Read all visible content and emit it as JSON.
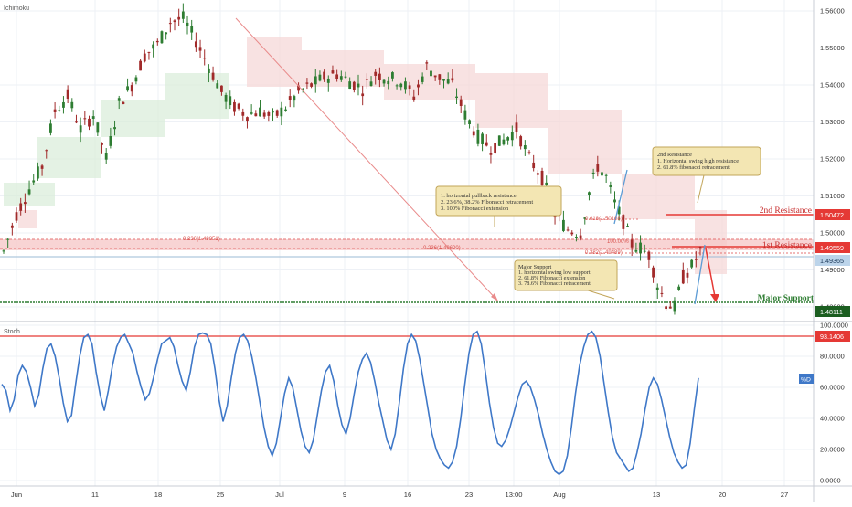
{
  "colors": {
    "background": "#ffffff",
    "grid": "#eef1f6",
    "candle_up": "#2e7d32",
    "candle_down": "#a12a2a",
    "cloud_bull": "#d8ecd8",
    "cloud_bear": "#f5d5d5",
    "resistance_zone": "#f6c6c6",
    "resistance_line": "#e53935",
    "support_line": "#2e7d32",
    "stoch_line": "#3f78c8",
    "stoch_level": "#e53935",
    "note_bg": "#f3e6b3",
    "note_border": "#c2a55a",
    "axis_text": "#333333",
    "fib_text": "#d9534f"
  },
  "labels": {
    "ichimoku": "Ichimoku",
    "stoch": "Stoch",
    "pct_d": "%D",
    "fib_left": "0.236(1.49851)",
    "fib_mid": "0.236(1.49600)",
    "fib_382": "0.382(1.49489)",
    "fib_618": "0.618(1.50108)",
    "fib_100": "100.00%"
  },
  "annotations": {
    "pullback": {
      "lines": [
        "1. horizontal pullback resistance",
        "2. 23.6%, 38.2% Fibonacci retracement",
        "3. 100% Fibonacci extension"
      ]
    },
    "major_support": {
      "lines": [
        "Major Support",
        "1. horizontal swing low support",
        "2. 61.8% Fibonacci extension",
        "3. 78.6% Fibonacci retracement"
      ]
    },
    "second_resistance": {
      "lines": [
        "2nd Resistance",
        "1. Horizontal swing high resistance",
        "2. 61.8% fibonacci retracement"
      ]
    }
  },
  "chart_data": [
    {
      "type": "candlestick",
      "title": "Ichimoku",
      "y_ticks": [
        "1.56000",
        "1.55000",
        "1.54000",
        "1.53000",
        "1.52000",
        "1.51000",
        "1.50000",
        "1.49000",
        "1.48000"
      ],
      "ylim": [
        1.4775,
        1.5625
      ],
      "x_ticks": [
        "Jun",
        "11",
        "18",
        "25",
        "Jul",
        "9",
        "16",
        "23",
        "13:00",
        "Aug",
        "13",
        "20",
        "27"
      ],
      "levels": [
        {
          "name": "2nd Resistance",
          "value": 1.50472
        },
        {
          "name": "1st Resistance",
          "value": 1.49559
        },
        {
          "name": "Major Support",
          "value": 1.48111
        }
      ],
      "current_price": 1.49365,
      "series_points": [
        [
          0,
          1.495
        ],
        [
          3,
          1.505
        ],
        [
          6,
          1.512
        ],
        [
          9,
          1.518
        ],
        [
          12,
          1.533
        ],
        [
          15,
          1.537
        ],
        [
          18,
          1.528
        ],
        [
          21,
          1.532
        ],
        [
          24,
          1.52
        ],
        [
          27,
          1.535
        ],
        [
          30,
          1.54
        ],
        [
          33,
          1.548
        ],
        [
          36,
          1.551
        ],
        [
          39,
          1.557
        ],
        [
          42,
          1.558
        ],
        [
          45,
          1.552
        ],
        [
          48,
          1.545
        ],
        [
          51,
          1.538
        ],
        [
          54,
          1.534
        ],
        [
          57,
          1.532
        ],
        [
          60,
          1.533
        ],
        [
          63,
          1.531
        ],
        [
          66,
          1.534
        ],
        [
          69,
          1.538
        ],
        [
          72,
          1.54
        ],
        [
          75,
          1.542
        ],
        [
          78,
          1.543
        ],
        [
          81,
          1.541
        ],
        [
          84,
          1.539
        ],
        [
          87,
          1.543
        ],
        [
          90,
          1.542
        ],
        [
          93,
          1.541
        ],
        [
          96,
          1.537
        ],
        [
          99,
          1.545
        ],
        [
          102,
          1.542
        ],
        [
          105,
          1.54
        ],
        [
          108,
          1.532
        ],
        [
          111,
          1.526
        ],
        [
          114,
          1.523
        ],
        [
          117,
          1.525
        ],
        [
          120,
          1.528
        ],
        [
          123,
          1.52
        ],
        [
          126,
          1.515
        ],
        [
          129,
          1.505
        ],
        [
          132,
          1.501
        ],
        [
          135,
          1.5
        ],
        [
          137,
          1.511
        ],
        [
          139,
          1.518
        ],
        [
          141,
          1.515
        ],
        [
          143,
          1.508
        ],
        [
          145,
          1.503
        ],
        [
          147,
          1.497
        ],
        [
          149,
          1.496
        ],
        [
          151,
          1.494
        ],
        [
          153,
          1.486
        ],
        [
          155,
          1.481
        ],
        [
          157,
          1.48
        ],
        [
          159,
          1.488
        ],
        [
          161,
          1.491
        ],
        [
          163,
          1.495
        ]
      ]
    },
    {
      "type": "line",
      "title": "Stoch",
      "series": [
        {
          "name": "%D",
          "values": [
            62,
            58,
            45,
            52,
            68,
            74,
            70,
            60,
            48,
            55,
            72,
            85,
            88,
            80,
            66,
            50,
            38,
            42,
            62,
            80,
            92,
            94,
            88,
            70,
            55,
            45,
            58,
            74,
            86,
            92,
            94,
            88,
            82,
            70,
            60,
            52,
            56,
            66,
            78,
            88,
            90,
            92,
            86,
            74,
            64,
            58,
            70,
            86,
            94,
            95,
            94,
            88,
            72,
            52,
            38,
            48,
            66,
            82,
            92,
            94,
            90,
            80,
            66,
            50,
            34,
            22,
            16,
            24,
            40,
            56,
            66,
            60,
            46,
            32,
            22,
            18,
            26,
            42,
            58,
            70,
            74,
            64,
            48,
            36,
            30,
            40,
            56,
            70,
            78,
            82,
            76,
            64,
            50,
            38,
            26,
            20,
            30,
            50,
            72,
            88,
            94,
            90,
            78,
            62,
            46,
            30,
            20,
            14,
            10,
            8,
            12,
            22,
            40,
            62,
            82,
            94,
            96,
            88,
            70,
            50,
            34,
            24,
            22,
            26,
            34,
            44,
            54,
            62,
            64,
            60,
            52,
            42,
            30,
            20,
            12,
            6,
            4,
            6,
            16,
            34,
            56,
            74,
            86,
            94,
            96,
            92,
            80,
            62,
            44,
            28,
            18,
            14,
            10,
            6,
            8,
            18,
            30,
            46,
            60,
            66,
            62,
            52,
            40,
            28,
            18,
            12,
            8,
            10,
            24,
            46,
            66
          ]
        }
      ],
      "y_ticks": [
        "100.0000",
        "80.0000",
        "60.0000",
        "40.0000",
        "20.0000",
        "0.0000"
      ],
      "ylim": [
        0,
        100
      ],
      "level": 93.1406,
      "level_label": "93.1406"
    }
  ]
}
